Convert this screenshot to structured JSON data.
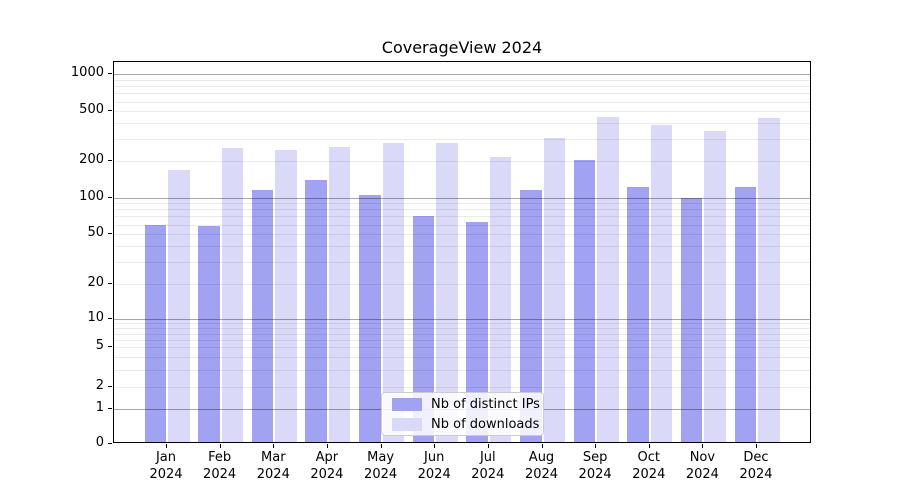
{
  "title": "CoverageView 2024",
  "legend": {
    "items": [
      {
        "label": "Nb of distinct IPs",
        "color": "#a2a2f2"
      },
      {
        "label": "Nb of downloads",
        "color": "#dadaf8"
      }
    ]
  },
  "chart_data": {
    "type": "bar",
    "title": "CoverageView 2024",
    "categories": [
      "Jan",
      "Feb",
      "Mar",
      "Apr",
      "May",
      "Jun",
      "Jul",
      "Aug",
      "Sep",
      "Oct",
      "Nov",
      "Dec"
    ],
    "category_year": "2024",
    "series": [
      {
        "name": "Nb of distinct IPs",
        "color": "#a2a2f2",
        "values": [
          57,
          56,
          112,
          135,
          101,
          68,
          61,
          110,
          194,
          117,
          95,
          117
        ]
      },
      {
        "name": "Nb of downloads",
        "color": "#dadaf8",
        "values": [
          160,
          245,
          235,
          248,
          268,
          267,
          207,
          292,
          435,
          372,
          333,
          425
        ]
      }
    ],
    "xlabel": "",
    "ylabel": "",
    "yscale": "symlog",
    "yticks": [
      1000,
      500,
      200,
      100,
      50,
      20,
      10,
      5,
      2,
      1,
      0
    ],
    "minor_gridlines": [
      2,
      3,
      4,
      5,
      6,
      7,
      8,
      9,
      20,
      30,
      40,
      50,
      60,
      70,
      80,
      90,
      200,
      300,
      400,
      500,
      600,
      700,
      800,
      900
    ],
    "major_gridlines": [
      1,
      10,
      100,
      1000
    ],
    "ylim": [
      0,
      1250
    ],
    "grid": true,
    "legend_position": "lower center"
  },
  "colors": {
    "background": "#ffffff",
    "bar_dark": "#a2a2f2",
    "bar_light": "#dadaf8",
    "axis": "#000000",
    "legend_border": "#cccccc"
  }
}
